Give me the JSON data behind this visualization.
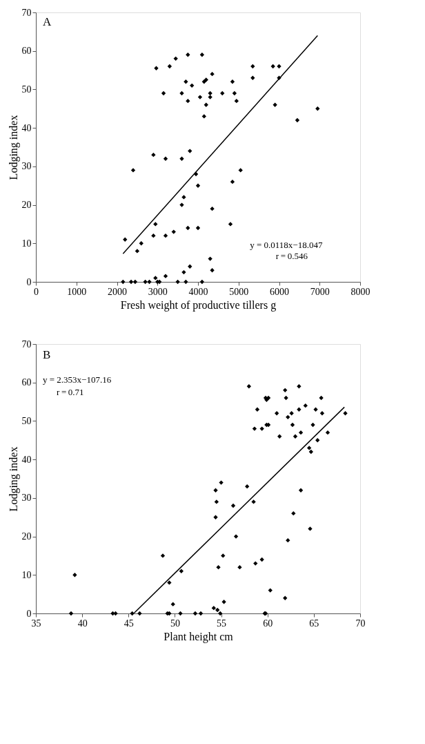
{
  "chart_data": [
    {
      "type": "scatter",
      "xlabel": "Fresh weight of productive tillers g",
      "ylabel": "Lodging index",
      "xlim": [
        0,
        8000
      ],
      "ylim": [
        0,
        70
      ],
      "xticks": [
        0,
        1000,
        2000,
        3000,
        4000,
        5000,
        6000,
        7000,
        8000
      ],
      "yticks": [
        0,
        10,
        20,
        30,
        40,
        50,
        60,
        70
      ],
      "grid": false,
      "annotations": [
        "A",
        "y = 0.0118x−18.047",
        "r = 0.546"
      ],
      "series": [
        {
          "type": "scatter",
          "marker": "diamond",
          "color": "#000000",
          "x": [
            2970,
            3300,
            3450,
            3750,
            4100,
            3150,
            3600,
            3700,
            3850,
            4150,
            4200,
            4350,
            4300,
            4300,
            4050,
            4200,
            3750,
            4150,
            4600,
            4850,
            4900,
            4950,
            5350,
            5350,
            5850,
            6000,
            6000,
            5900,
            6450,
            6950,
            2400,
            2900,
            3200,
            3600,
            3800,
            3950,
            4000,
            3650,
            3600,
            4350,
            4850,
            5050,
            4800,
            2200,
            2500,
            2600,
            2900,
            2950,
            3200,
            3400,
            3750,
            4000,
            2150,
            2350,
            2450,
            2700,
            2800,
            2950,
            3000,
            3050,
            3200,
            3500,
            3650,
            3700,
            3800,
            4100,
            4300,
            4350
          ],
          "values": [
            55.5,
            56,
            58,
            59,
            59,
            49,
            49,
            52,
            51,
            52,
            52.5,
            54,
            49,
            48,
            48,
            46,
            47,
            43,
            49,
            52,
            49,
            47,
            56,
            53,
            56,
            56,
            53,
            46,
            42,
            45,
            29,
            33,
            32,
            32,
            34,
            28,
            25,
            22,
            20,
            19,
            26,
            29,
            15,
            11,
            8,
            10,
            12,
            15,
            12,
            13,
            14,
            14,
            0,
            0,
            0,
            0,
            0,
            1,
            0,
            0,
            1.5,
            0,
            2.5,
            0,
            4,
            0,
            6,
            3
          ]
        },
        {
          "type": "line",
          "marker": "none",
          "color": "#000000",
          "x": [
            2150,
            6950
          ],
          "values": [
            7.3,
            64.0
          ]
        }
      ]
    },
    {
      "type": "scatter",
      "xlabel": "Plant height cm",
      "ylabel": "Lodging index",
      "xlim": [
        35,
        70
      ],
      "ylim": [
        0,
        70
      ],
      "xticks": [
        35,
        40,
        45,
        50,
        55,
        60,
        65,
        70
      ],
      "yticks": [
        0,
        10,
        20,
        30,
        40,
        50,
        60,
        70
      ],
      "grid": false,
      "annotations": [
        "B",
        "y = 2.353x−107.16",
        "r = 0.71"
      ],
      "series": [
        {
          "type": "scatter",
          "marker": "diamond",
          "color": "#000000",
          "x": [
            38.8,
            39.2,
            43.3,
            43.6,
            45.4,
            46.2,
            48.7,
            49.2,
            49.4,
            49.4,
            49.8,
            50.7,
            50.6,
            52.2,
            52.8,
            54.2,
            54.6,
            54.9,
            55.3,
            54.4,
            54.5,
            54.4,
            55.0,
            54.7,
            55.2,
            56.3,
            56.6,
            57.0,
            57.8,
            58.5,
            58.7,
            59.4,
            59.7,
            59.8,
            60.3,
            61.9,
            62.2,
            62.8,
            63.6,
            64.6,
            58.0,
            58.9,
            58.6,
            59.4,
            59.8,
            60.1,
            59.9,
            59.9,
            60.1,
            61.3,
            61.0,
            61.9,
            62.0,
            62.2,
            62.6,
            62.7,
            63.0,
            63.6,
            63.4,
            63.4,
            64.1,
            64.5,
            64.7,
            64.9,
            65.2,
            65.4,
            65.8,
            65.9,
            66.5,
            68.4
          ],
          "values": [
            0,
            10,
            0,
            0,
            0,
            0,
            15,
            0,
            0,
            8,
            2.4,
            11,
            0,
            0,
            0,
            1.4,
            0.9,
            0,
            3,
            32,
            29,
            25,
            34,
            12,
            15,
            28,
            20,
            12,
            33,
            29,
            13,
            14,
            0,
            0,
            6,
            4,
            19,
            26,
            32,
            22,
            59,
            53,
            48,
            48,
            56,
            56,
            55.5,
            49,
            49,
            46,
            52,
            58,
            56,
            51,
            52,
            49,
            46,
            47,
            59,
            53,
            54,
            43,
            42,
            49,
            53,
            45,
            56,
            52,
            47,
            52
          ]
        },
        {
          "type": "line",
          "marker": "none",
          "color": "#000000",
          "x": [
            45.6,
            68.3
          ],
          "values": [
            0.1,
            53.6
          ]
        }
      ]
    }
  ]
}
